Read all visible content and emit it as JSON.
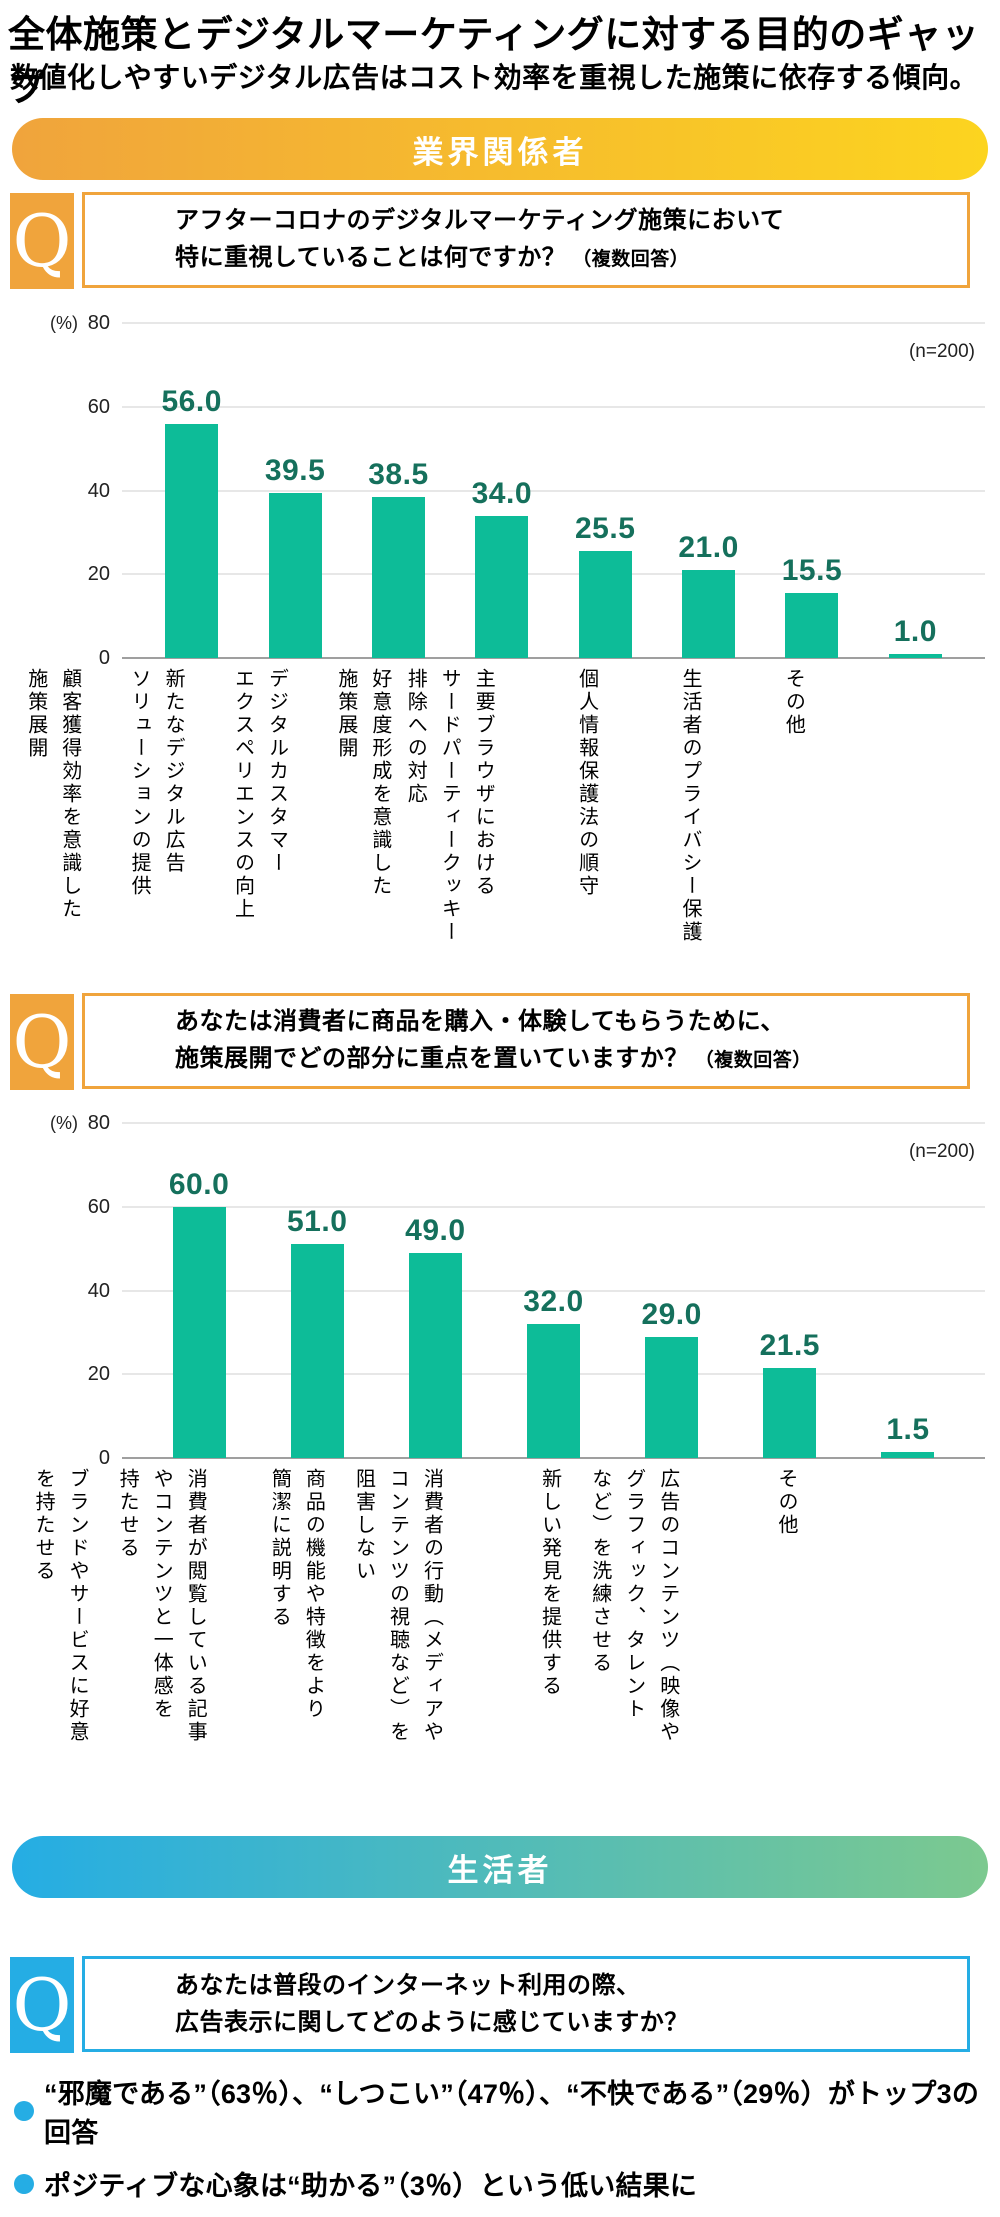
{
  "header": {
    "title": "全体施策とデジタルマーケティングに対する目的のギャップ",
    "subtitle": "数値化しやすいデジタル広告はコスト効率を重視した施策に依存する傾向。"
  },
  "sections": {
    "industry": {
      "band_label": "業界関係者"
    },
    "consumer": {
      "band_label": "生活者"
    }
  },
  "q_mark": "Q",
  "questions": [
    {
      "line1": "アフターコロナのデジタルマーケティング施策において",
      "line2": "特に重視していることは何ですか？",
      "suffix": "（複数回答）"
    },
    {
      "line1": "あなたは消費者に商品を購入・体験してもらうために、",
      "line2": "施策展開でどの部分に重点を置いていますか？",
      "suffix": "（複数回答）"
    },
    {
      "line1": "あなたは普段のインターネット利用の際、",
      "line2": "広告表示に関してどのように感じていますか？",
      "suffix": ""
    }
  ],
  "chart_data": [
    {
      "type": "bar",
      "title": "アフターコロナのデジタルマーケティング施策において特に重視していること（複数回答）",
      "n_label": "(n=200)",
      "percent_label": "(%)",
      "ylim": [
        0,
        80
      ],
      "yticks": [
        80,
        60,
        40,
        20,
        0
      ],
      "grid": true,
      "bar_color": "#0dbc98",
      "value_color": "#15705c",
      "categories": [
        "顧客獲得効率を意識した\n施策展開",
        "新たなデジタル広告\nソリューションの提供",
        "デジタルカスタマー\nエクスペリエンスの向上",
        "好意度形成を意識した\n施策展開",
        "主要ブラウザにおける\nサードパーティークッキー\n排除への対応",
        "個人情報保護法の順守",
        "生活者のプライバシー保護",
        "その他"
      ],
      "values": [
        56.0,
        39.5,
        38.5,
        34.0,
        25.5,
        21.0,
        15.5,
        1.0
      ]
    },
    {
      "type": "bar",
      "title": "消費者に商品を購入・体験してもらうために施策展開で重点を置く部分（複数回答）",
      "n_label": "(n=200)",
      "percent_label": "(%)",
      "ylim": [
        0,
        80
      ],
      "yticks": [
        80,
        60,
        40,
        20,
        0
      ],
      "grid": true,
      "bar_color": "#0dbc98",
      "value_color": "#15705c",
      "categories": [
        "ブランドやサービスに好意\nを持たせる",
        "消費者が閲覧している記事\nやコンテンツと一体感を\n持たせる",
        "商品の機能や特徴をより\n簡潔に説明する",
        "消費者の行動（メディアや\nコンテンツの視聴など）を\n阻害しない",
        "新しい発見を提供する",
        "広告のコンテンツ（映像や\nグラフィック、タレント\nなど）を洗練させる",
        "その他"
      ],
      "values": [
        60.0,
        51.0,
        49.0,
        32.0,
        29.0,
        21.5,
        1.5
      ]
    }
  ],
  "bullets": [
    {
      "text": "“邪魔である”（63％）、“しつこい”（47％）、“不快である”（29％）がトップ3の回答"
    },
    {
      "text": "ポジティブな心象は“助かる”（3％）という低い結果に"
    }
  ],
  "colors": {
    "orange": "#f0a43c",
    "yellow": "#fcd41f",
    "blue": "#25ade4",
    "green": "#7cc98f",
    "bar_teal": "#0dbc98",
    "value_green": "#15705c"
  }
}
